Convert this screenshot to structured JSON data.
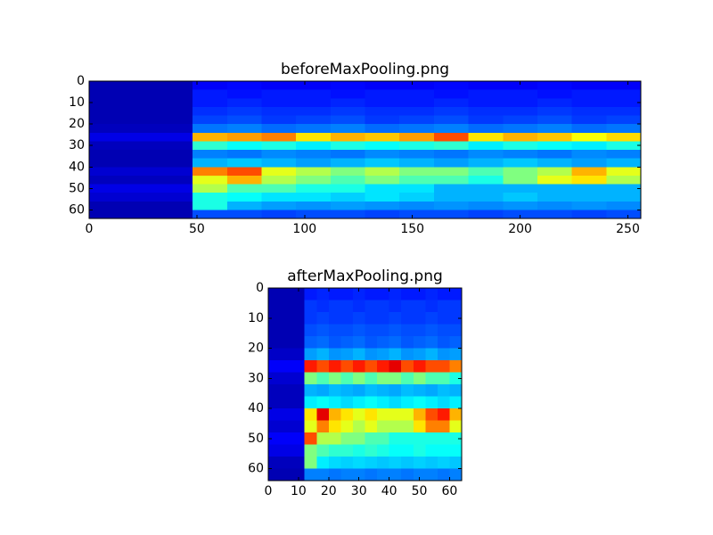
{
  "chart_data": [
    {
      "type": "heatmap",
      "title": "beforeMaxPooling.png",
      "colormap": "jet",
      "clim": [
        0,
        1
      ],
      "xlim": [
        0,
        256
      ],
      "ylim": [
        64,
        0
      ],
      "xticks": [
        0,
        50,
        100,
        150,
        200,
        250
      ],
      "yticks": [
        0,
        10,
        20,
        30,
        40,
        50,
        60
      ],
      "values": [
        [
          0.05,
          0.05,
          0.05,
          0.12,
          0.13,
          0.12,
          0.12,
          0.13,
          0.12,
          0.12,
          0.13,
          0.12,
          0.12,
          0.13,
          0.12,
          0.12
        ],
        [
          0.05,
          0.05,
          0.05,
          0.15,
          0.14,
          0.15,
          0.15,
          0.14,
          0.15,
          0.15,
          0.14,
          0.15,
          0.15,
          0.14,
          0.15,
          0.15
        ],
        [
          0.05,
          0.05,
          0.05,
          0.15,
          0.16,
          0.15,
          0.15,
          0.16,
          0.15,
          0.15,
          0.16,
          0.15,
          0.15,
          0.16,
          0.15,
          0.15
        ],
        [
          0.05,
          0.05,
          0.05,
          0.17,
          0.18,
          0.17,
          0.17,
          0.18,
          0.17,
          0.17,
          0.18,
          0.17,
          0.17,
          0.18,
          0.17,
          0.17
        ],
        [
          0.05,
          0.05,
          0.05,
          0.19,
          0.2,
          0.18,
          0.19,
          0.2,
          0.18,
          0.19,
          0.2,
          0.18,
          0.19,
          0.2,
          0.18,
          0.19
        ],
        [
          0.06,
          0.06,
          0.06,
          0.24,
          0.25,
          0.23,
          0.24,
          0.25,
          0.23,
          0.24,
          0.25,
          0.23,
          0.24,
          0.25,
          0.23,
          0.24
        ],
        [
          0.1,
          0.1,
          0.1,
          0.7,
          0.72,
          0.75,
          0.65,
          0.7,
          0.68,
          0.72,
          0.8,
          0.65,
          0.7,
          0.68,
          0.62,
          0.66
        ],
        [
          0.06,
          0.06,
          0.06,
          0.42,
          0.38,
          0.4,
          0.36,
          0.4,
          0.38,
          0.4,
          0.42,
          0.36,
          0.4,
          0.38,
          0.36,
          0.4
        ],
        [
          0.05,
          0.05,
          0.05,
          0.25,
          0.24,
          0.26,
          0.25,
          0.24,
          0.26,
          0.25,
          0.24,
          0.26,
          0.25,
          0.24,
          0.26,
          0.25
        ],
        [
          0.05,
          0.05,
          0.05,
          0.3,
          0.32,
          0.3,
          0.28,
          0.3,
          0.32,
          0.3,
          0.28,
          0.3,
          0.32,
          0.3,
          0.28,
          0.3
        ],
        [
          0.08,
          0.08,
          0.08,
          0.75,
          0.8,
          0.6,
          0.55,
          0.5,
          0.55,
          0.5,
          0.5,
          0.45,
          0.5,
          0.55,
          0.7,
          0.6
        ],
        [
          0.06,
          0.06,
          0.06,
          0.6,
          0.7,
          0.55,
          0.5,
          0.45,
          0.5,
          0.45,
          0.45,
          0.4,
          0.5,
          0.6,
          0.65,
          0.55
        ],
        [
          0.1,
          0.1,
          0.1,
          0.55,
          0.45,
          0.45,
          0.4,
          0.4,
          0.35,
          0.35,
          0.3,
          0.3,
          0.3,
          0.3,
          0.3,
          0.3
        ],
        [
          0.08,
          0.08,
          0.08,
          0.4,
          0.38,
          0.35,
          0.35,
          0.33,
          0.35,
          0.33,
          0.3,
          0.3,
          0.32,
          0.3,
          0.3,
          0.3
        ],
        [
          0.05,
          0.05,
          0.05,
          0.4,
          0.3,
          0.28,
          0.27,
          0.28,
          0.27,
          0.26,
          0.27,
          0.26,
          0.27,
          0.26,
          0.27,
          0.26
        ],
        [
          0.05,
          0.05,
          0.05,
          0.2,
          0.2,
          0.19,
          0.2,
          0.2,
          0.19,
          0.2,
          0.2,
          0.19,
          0.2,
          0.2,
          0.19,
          0.2
        ]
      ]
    },
    {
      "type": "heatmap",
      "title": "afterMaxPooling.png",
      "colormap": "jet",
      "clim": [
        0,
        1
      ],
      "xlim": [
        0,
        64
      ],
      "ylim": [
        64,
        0
      ],
      "xticks": [
        0,
        10,
        20,
        30,
        40,
        50,
        60
      ],
      "yticks": [
        0,
        10,
        20,
        30,
        40,
        50,
        60
      ],
      "values": [
        [
          0.05,
          0.05,
          0.05,
          0.15,
          0.16,
          0.15,
          0.15,
          0.16,
          0.15,
          0.15,
          0.16,
          0.15,
          0.15,
          0.16,
          0.15,
          0.15
        ],
        [
          0.05,
          0.05,
          0.05,
          0.18,
          0.17,
          0.18,
          0.18,
          0.17,
          0.18,
          0.18,
          0.17,
          0.18,
          0.18,
          0.17,
          0.18,
          0.18
        ],
        [
          0.05,
          0.05,
          0.05,
          0.18,
          0.19,
          0.18,
          0.18,
          0.19,
          0.18,
          0.18,
          0.19,
          0.18,
          0.18,
          0.19,
          0.18,
          0.18
        ],
        [
          0.05,
          0.05,
          0.05,
          0.2,
          0.21,
          0.2,
          0.2,
          0.21,
          0.2,
          0.2,
          0.21,
          0.2,
          0.2,
          0.21,
          0.2,
          0.2
        ],
        [
          0.05,
          0.05,
          0.05,
          0.22,
          0.23,
          0.21,
          0.22,
          0.23,
          0.21,
          0.22,
          0.23,
          0.21,
          0.22,
          0.23,
          0.21,
          0.22
        ],
        [
          0.07,
          0.07,
          0.07,
          0.28,
          0.3,
          0.27,
          0.28,
          0.3,
          0.27,
          0.28,
          0.3,
          0.27,
          0.28,
          0.3,
          0.27,
          0.28
        ],
        [
          0.12,
          0.12,
          0.12,
          0.85,
          0.8,
          0.85,
          0.8,
          0.85,
          0.8,
          0.85,
          0.9,
          0.8,
          0.85,
          0.8,
          0.8,
          0.75
        ],
        [
          0.08,
          0.08,
          0.08,
          0.5,
          0.45,
          0.5,
          0.45,
          0.5,
          0.45,
          0.5,
          0.5,
          0.45,
          0.5,
          0.45,
          0.45,
          0.4
        ],
        [
          0.06,
          0.06,
          0.06,
          0.3,
          0.29,
          0.31,
          0.3,
          0.29,
          0.31,
          0.3,
          0.29,
          0.31,
          0.3,
          0.29,
          0.31,
          0.3
        ],
        [
          0.06,
          0.06,
          0.06,
          0.36,
          0.38,
          0.36,
          0.34,
          0.36,
          0.38,
          0.36,
          0.34,
          0.36,
          0.38,
          0.36,
          0.34,
          0.36
        ],
        [
          0.1,
          0.1,
          0.1,
          0.65,
          0.9,
          0.7,
          0.65,
          0.6,
          0.65,
          0.6,
          0.6,
          0.6,
          0.7,
          0.8,
          0.85,
          0.7
        ],
        [
          0.08,
          0.08,
          0.08,
          0.6,
          0.75,
          0.65,
          0.6,
          0.55,
          0.6,
          0.55,
          0.55,
          0.55,
          0.65,
          0.75,
          0.75,
          0.6
        ],
        [
          0.12,
          0.12,
          0.12,
          0.8,
          0.55,
          0.55,
          0.5,
          0.5,
          0.45,
          0.45,
          0.4,
          0.4,
          0.4,
          0.4,
          0.4,
          0.4
        ],
        [
          0.1,
          0.1,
          0.1,
          0.5,
          0.45,
          0.42,
          0.42,
          0.4,
          0.42,
          0.4,
          0.38,
          0.38,
          0.4,
          0.38,
          0.38,
          0.38
        ],
        [
          0.06,
          0.06,
          0.06,
          0.5,
          0.36,
          0.34,
          0.33,
          0.34,
          0.33,
          0.32,
          0.33,
          0.32,
          0.33,
          0.32,
          0.33,
          0.32
        ],
        [
          0.05,
          0.05,
          0.05,
          0.25,
          0.25,
          0.24,
          0.25,
          0.25,
          0.24,
          0.25,
          0.25,
          0.24,
          0.25,
          0.25,
          0.24,
          0.25
        ]
      ]
    }
  ]
}
